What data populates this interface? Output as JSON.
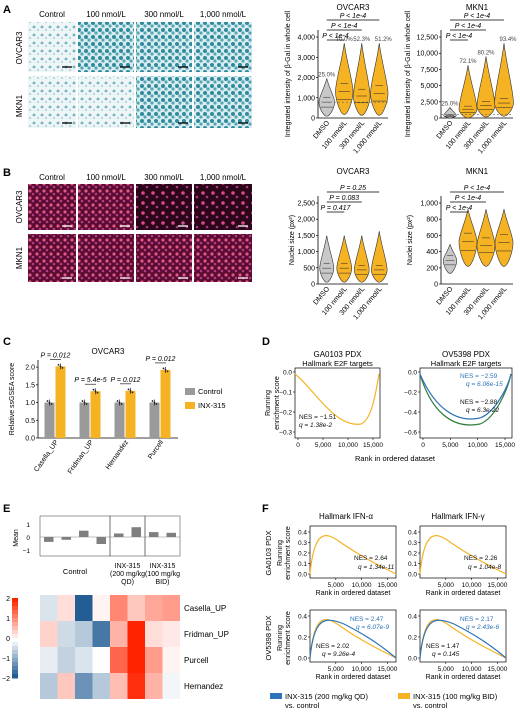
{
  "panelA": {
    "letter": "A",
    "col_headers": [
      "Control",
      "100 nmol/L",
      "300 nmol/L",
      "1,000 nmol/L"
    ],
    "row_labels": [
      "OVCAR3",
      "MKN1"
    ],
    "violins": [
      {
        "title": "OVCAR3",
        "ylabel": "Integrated intensity of β-Gal in whole cell",
        "yticks": [
          "0",
          "1,000",
          "2,000",
          "3,000",
          "4,000"
        ],
        "xcats": [
          "DMSO",
          "100 nmol/L",
          "300 nmol/L",
          "1,000 nmol/L"
        ],
        "percents": [
          "25.0%",
          "70.0%",
          "52.3%",
          "51.2%"
        ],
        "pvals": [
          "P < 1e-4",
          "P < 1e-4",
          "P < 1e-4"
        ]
      },
      {
        "title": "MKN1",
        "ylabel": "Integrated intensity of β-Gal in whole cell",
        "yticks": [
          "0",
          "2,500",
          "5,000",
          "7,500",
          "10,000",
          "12,500"
        ],
        "xcats": [
          "DMSO",
          "100 nmol/L",
          "300 nmol/L",
          "1,000 nmol/L"
        ],
        "percents": [
          "25.0%",
          "72.1%",
          "80.2%",
          "93.4%"
        ],
        "pvals": [
          "P < 1e-4",
          "P < 1e-4",
          "P < 1e-4"
        ]
      }
    ]
  },
  "panelB": {
    "letter": "B",
    "col_headers": [
      "Control",
      "100 nmol/L",
      "300 nmol/L",
      "1,000 nmol/L"
    ],
    "row_labels": [
      "OVCAR3",
      "MKN1"
    ],
    "violins": [
      {
        "title": "OVCAR3",
        "ylabel": "Nuclei size (px²)",
        "yticks": [
          "0",
          "500",
          "1,000",
          "1,500",
          "2,000",
          "2,500"
        ],
        "xcats": [
          "DMSO",
          "100 nmol/L",
          "300 nmol/L",
          "1,000 nmol/L"
        ],
        "pvals": [
          "P = 0.417",
          "P = 0.083",
          "P = 0.25"
        ]
      },
      {
        "title": "MKN1",
        "ylabel": "Nuclei size (px²)",
        "yticks": [
          "0",
          "200",
          "400",
          "600",
          "800",
          "1,000"
        ],
        "xcats": [
          "DMSO",
          "100 nmol/L",
          "300 nmol/L",
          "1,000 nmol/L"
        ],
        "pvals": [
          "P < 1e-4",
          "P < 1e-4",
          "P < 1e-4"
        ]
      }
    ]
  },
  "panelC": {
    "letter": "C",
    "title": "OVCAR3",
    "ylabel": "Relative ssGSEA score",
    "yticks": [
      "0.0",
      "0.5",
      "1.0",
      "1.5",
      "2.0"
    ],
    "legend": [
      "Control",
      "INX-315"
    ],
    "chart_data": {
      "type": "bar",
      "categories": [
        "Casella_UP",
        "Fridman_UP",
        "Hernandez",
        "Purcell"
      ],
      "series": [
        {
          "name": "Control",
          "values": [
            1.0,
            1.0,
            1.0,
            1.0
          ]
        },
        {
          "name": "INX-315",
          "values": [
            2.02,
            1.32,
            1.33,
            1.92
          ]
        }
      ],
      "pvals": [
        "P = 0.012",
        "P = 5.4e-5",
        "P = 0.012",
        "P = 0.012"
      ],
      "ylim": [
        0,
        2.2
      ]
    }
  },
  "panelD": {
    "letter": "D",
    "plots": [
      {
        "title": "GA0103 PDX",
        "subtitle": "Hallmark E2F targets",
        "nes": "NES = −1.51",
        "q": "q = 1.38e-2",
        "yticks": [
          "0.0",
          "−0.1",
          "−0.2",
          "−0.3"
        ],
        "xticks": [
          "0",
          "5,000",
          "10,000",
          "15,000"
        ]
      },
      {
        "title": "OV5398 PDX",
        "subtitle": "Hallmark E2F targets",
        "nes_blue": "NES = −2.59",
        "q_blue": "q = 6.06e-15",
        "nes": "NES = −2.88",
        "q": "q = 6.3e-22",
        "yticks": [
          "0.0",
          "−0.2",
          "−0.4",
          "−0.6"
        ],
        "xticks": [
          "0",
          "5,000",
          "10,000",
          "15,000"
        ]
      }
    ],
    "ylabel": "Running enrichment score",
    "xlabel": "Rank in ordered dataset"
  },
  "panelE": {
    "letter": "E",
    "mean_label": "Mean",
    "groups": [
      "Control",
      "INX-315 (200 mg/kg QD)",
      "INX-315 (100 mg/kg BID)"
    ],
    "rows": [
      "Casella_UP",
      "Fridman_UP",
      "Purcell",
      "Hernandez"
    ],
    "scale": [
      "2",
      "1",
      "0",
      "−1",
      "−2"
    ],
    "chart_data": {
      "type": "heatmap",
      "columns": 8,
      "means": [
        -0.35,
        -0.2,
        0.45,
        -0.5,
        0.25,
        0.7,
        0.35,
        0.3
      ],
      "values": [
        [
          -0.3,
          0.3,
          -1.8,
          0.1,
          1.1,
          0.5,
          0.8,
          0.9
        ],
        [
          0.4,
          -0.4,
          -0.6,
          -1.5,
          0.7,
          2.0,
          0.3,
          0.2
        ],
        [
          -0.2,
          -0.5,
          -0.3,
          0.0,
          1.4,
          2.3,
          0.9,
          0.1
        ],
        [
          -0.6,
          0.5,
          -1.2,
          -0.6,
          0.6,
          1.9,
          0.7,
          -0.1
        ]
      ]
    }
  },
  "panelF": {
    "letter": "F",
    "col_titles": [
      "Hallmark IFN-α",
      "Hallmark IFN-γ"
    ],
    "row_labels": [
      "GA0103 PDX",
      "OV5398 PDX"
    ],
    "ylabel": "Running enrichment score",
    "xlabel": "Rank in ordered dataset",
    "plots": [
      {
        "nes": "NES = 2.64",
        "q": "q = 1.34e-11",
        "yticks": [
          "0.0",
          "0.1",
          "0.2",
          "0.3",
          "0.4"
        ],
        "xticks": [
          "5,000",
          "10,000",
          "15,000"
        ]
      },
      {
        "nes": "NES = 2.26",
        "q": "q = 1.04e-8",
        "yticks": [
          "0.0",
          "0.1",
          "0.2",
          "0.3",
          "0.4"
        ],
        "xticks": [
          "5,000",
          "10,000",
          "15,000"
        ]
      },
      {
        "nes_blue": "NES = 2.47",
        "q_blue": "q = 6.07e-9",
        "nes": "NES = 2.02",
        "q": "q = 9.26e-4",
        "yticks": [
          "0.0",
          "0.2",
          "0.4"
        ],
        "xticks": [
          "5,000",
          "10,000",
          "15,000"
        ]
      },
      {
        "nes_blue": "NES = 2.17",
        "q_blue": "q = 2.43e-6",
        "nes": "NES = 1.47",
        "q": "q = 0.145",
        "yticks": [
          "0.0",
          "0.2",
          "0.4"
        ],
        "xticks": [
          "5,000",
          "10,000",
          "15,000"
        ]
      }
    ],
    "legend": [
      {
        "label": "INX-315 (200 mg/kg QD)",
        "sub": "vs. control"
      },
      {
        "label": "INX-315 (100 mg/kg BID)",
        "sub": "vs. control"
      }
    ]
  },
  "colors": {
    "orange": "#f5b324",
    "blue": "#2d74b8",
    "gray": "#9a9a9a",
    "green": "#2f7d3c"
  }
}
